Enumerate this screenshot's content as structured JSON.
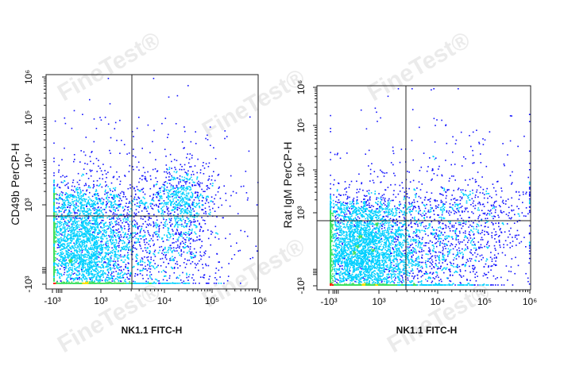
{
  "watermark": "FineTest®",
  "colors": {
    "density_low": "#1010ff",
    "density_mid1": "#00d0ff",
    "density_mid2": "#40e060",
    "density_mid3": "#ffe000",
    "density_high": "#ff2000",
    "gate_line": "#222222",
    "watermark": "#dcdcdc"
  },
  "chart_data": [
    {
      "type": "scatter",
      "subtype": "flow-cytometry-density-dot-plot",
      "xlabel": "NK1.1 FITC-H",
      "ylabel": "CD49b PerCP-H",
      "x_scale": "biexponential",
      "y_scale": "biexponential",
      "x_ticks": [
        "-10³",
        "10³",
        "10⁴",
        "10⁵",
        "10⁶"
      ],
      "y_ticks": [
        "-10³",
        "10³",
        "10⁴",
        "10⁵",
        "10⁶"
      ],
      "quadrant_gate": {
        "x": 2500,
        "y": 600
      },
      "populations": [
        {
          "name_hint": "main",
          "center": [
            250,
            0
          ],
          "spread": [
            0.55,
            0.45
          ],
          "weight": 0.62
        },
        {
          "name_hint": "tail",
          "center": [
            4000,
            20
          ],
          "spread": [
            0.9,
            0.55
          ],
          "weight": 0.2
        },
        {
          "name_hint": "NK cluster",
          "center": [
            20000,
            1000
          ],
          "spread": [
            0.3,
            0.4
          ],
          "weight": 0.12
        },
        {
          "name_hint": "sparse",
          "center": [
            6000,
            3000
          ],
          "spread": [
            1.0,
            1.0
          ],
          "weight": 0.06
        }
      ]
    },
    {
      "type": "scatter",
      "subtype": "flow-cytometry-density-dot-plot",
      "xlabel": "NK1.1 FITC-H",
      "ylabel": "Rat IgM PerCP-H",
      "x_scale": "biexponential",
      "y_scale": "biexponential",
      "x_ticks": [
        "-10³",
        "10³",
        "10⁴",
        "10⁵",
        "10⁶"
      ],
      "y_ticks": [
        "-10³",
        "10³",
        "10⁴",
        "10⁵",
        "10⁶"
      ],
      "quadrant_gate": {
        "x": 2500,
        "y": 600
      },
      "populations": [
        {
          "name_hint": "main",
          "center": [
            200,
            0
          ],
          "spread": [
            0.55,
            0.4
          ],
          "weight": 0.66
        },
        {
          "name_hint": "tail",
          "center": [
            8000,
            60
          ],
          "spread": [
            1.0,
            0.45
          ],
          "weight": 0.26
        },
        {
          "name_hint": "sparse",
          "center": [
            10000,
            2000
          ],
          "spread": [
            1.0,
            1.0
          ],
          "weight": 0.08
        }
      ]
    }
  ]
}
